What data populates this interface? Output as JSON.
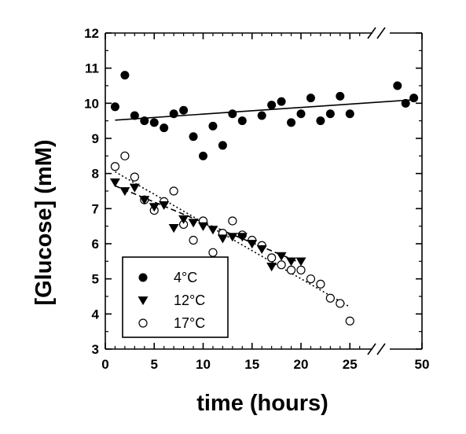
{
  "chart_data": {
    "type": "scatter",
    "title": "",
    "xlabel": "time (hours)",
    "ylabel": "[Glucose] (mM)",
    "xlim": [
      0,
      50
    ],
    "ylim": [
      3,
      12
    ],
    "x_axis_break": [
      27,
      45
    ],
    "x_tick_labels": [
      "0",
      "5",
      "10",
      "15",
      "20",
      "25",
      "50"
    ],
    "y_tick_labels": [
      "3",
      "4",
      "5",
      "6",
      "7",
      "8",
      "9",
      "10",
      "11",
      "12"
    ],
    "legend_position": "bottom-left",
    "grid": false,
    "series": [
      {
        "name": "4°C",
        "marker": "filled-circle",
        "x": [
          1,
          2,
          3,
          4,
          5,
          6,
          7,
          8,
          9,
          10,
          11,
          12,
          13,
          14,
          16,
          17,
          18,
          19,
          20,
          21,
          22,
          23,
          24,
          25,
          47,
          48,
          49
        ],
        "y": [
          9.9,
          10.8,
          9.65,
          9.5,
          9.45,
          9.3,
          9.7,
          9.8,
          9.05,
          8.5,
          9.35,
          8.8,
          9.7,
          9.5,
          9.65,
          9.95,
          10.05,
          9.45,
          9.7,
          10.15,
          9.5,
          9.7,
          10.2,
          9.7,
          10.5,
          10.0,
          10.15
        ],
        "fit": {
          "style": "solid",
          "x": [
            1,
            49
          ],
          "y": [
            9.52,
            10.1
          ]
        }
      },
      {
        "name": "12°C",
        "marker": "filled-triangle-down",
        "x": [
          1,
          2,
          3,
          4,
          5,
          6,
          7,
          8,
          9,
          10,
          11,
          12,
          13,
          14,
          15,
          16,
          17,
          18,
          19,
          20
        ],
        "y": [
          7.75,
          7.5,
          7.6,
          7.25,
          7.05,
          7.1,
          6.45,
          6.7,
          6.6,
          6.5,
          6.4,
          6.15,
          6.2,
          6.2,
          6.0,
          5.85,
          5.35,
          5.65,
          5.5,
          5.5
        ],
        "fit": {
          "style": "dashed",
          "x": [
            1,
            20
          ],
          "y": [
            7.65,
            5.45
          ]
        }
      },
      {
        "name": "17°C",
        "marker": "open-circle",
        "x": [
          1,
          2,
          3,
          4,
          5,
          6,
          7,
          8,
          9,
          10,
          11,
          12,
          13,
          14,
          15,
          16,
          17,
          18,
          19,
          20,
          21,
          22,
          23,
          24,
          25
        ],
        "y": [
          8.2,
          8.5,
          7.9,
          7.25,
          6.95,
          7.2,
          7.5,
          6.55,
          6.1,
          6.65,
          5.75,
          6.3,
          6.65,
          6.25,
          6.1,
          5.95,
          5.6,
          5.4,
          5.25,
          5.25,
          5.0,
          4.85,
          4.45,
          4.3,
          3.8
        ]
      }
    ],
    "fit_17C": {
      "style": "dotted",
      "x": [
        1,
        25
      ],
      "y": [
        8.05,
        4.2
      ]
    }
  }
}
